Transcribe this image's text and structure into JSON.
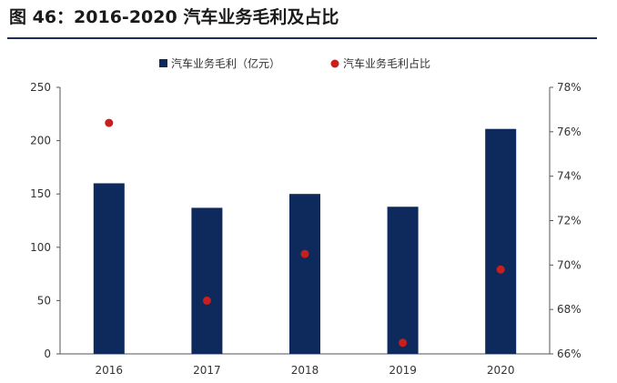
{
  "title": "图 46：2016-2020 汽车业务毛利及占比",
  "chart_data": {
    "type": "bar+scatter",
    "categories": [
      "2016",
      "2017",
      "2018",
      "2019",
      "2020"
    ],
    "series": [
      {
        "name": "汽车业务毛利（亿元）",
        "type": "bar",
        "axis": "left",
        "values": [
          160,
          137,
          150,
          138,
          211
        ]
      },
      {
        "name": "汽车业务毛利占比",
        "type": "scatter",
        "axis": "right",
        "values": [
          76.4,
          68.4,
          70.5,
          66.5,
          69.8
        ]
      }
    ],
    "left_axis": {
      "ylim": [
        0,
        250
      ],
      "ticks": [
        "0",
        "50",
        "100",
        "150",
        "200",
        "250"
      ]
    },
    "right_axis": {
      "ylim": [
        66,
        78
      ],
      "ticks": [
        "66%",
        "68%",
        "70%",
        "72%",
        "74%",
        "76%",
        "78%"
      ]
    },
    "legend_position": "top",
    "colors": {
      "bar": "#0e2a5c",
      "dot": "#c81e1e"
    }
  }
}
